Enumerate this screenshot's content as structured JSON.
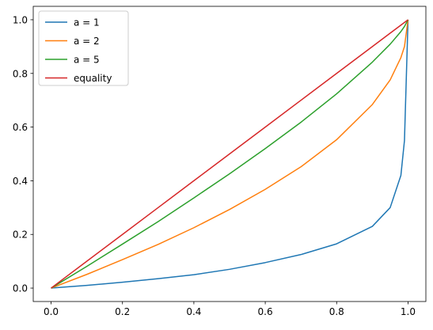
{
  "chart_data": {
    "type": "line",
    "x": [
      0,
      0.1,
      0.2,
      0.3,
      0.4,
      0.5,
      0.6,
      0.7,
      0.8,
      0.9,
      0.95,
      0.98,
      0.99,
      1.0
    ],
    "series": [
      {
        "name": "a = 1",
        "color": "#1f77b4",
        "values": [
          0,
          0.01,
          0.022,
          0.035,
          0.05,
          0.07,
          0.095,
          0.125,
          0.165,
          0.23,
          0.3,
          0.42,
          0.55,
          1.0
        ]
      },
      {
        "name": "a = 2",
        "color": "#ff7f0e",
        "values": [
          0,
          0.051,
          0.106,
          0.163,
          0.225,
          0.293,
          0.368,
          0.452,
          0.553,
          0.684,
          0.776,
          0.859,
          0.9,
          1.0
        ]
      },
      {
        "name": "a = 5",
        "color": "#2ca02c",
        "values": [
          0,
          0.081,
          0.164,
          0.248,
          0.336,
          0.426,
          0.52,
          0.618,
          0.724,
          0.842,
          0.909,
          0.956,
          0.975,
          1.0
        ]
      },
      {
        "name": "equality",
        "color": "#d62728",
        "values": [
          0,
          0.1,
          0.2,
          0.3,
          0.4,
          0.5,
          0.6,
          0.7,
          0.8,
          0.9,
          0.95,
          0.98,
          0.99,
          1.0
        ]
      }
    ],
    "xlim": [
      -0.05,
      1.05
    ],
    "ylim": [
      -0.05,
      1.05
    ],
    "xticks": [
      {
        "value": 0,
        "label": "0.0"
      },
      0.2,
      0.4,
      0.6,
      0.8,
      {
        "value": 1,
        "label": "1.0"
      }
    ],
    "yticks": [
      {
        "value": 0,
        "label": "0.0"
      },
      0.2,
      0.4,
      0.6,
      0.8,
      {
        "value": 1,
        "label": "1.0"
      }
    ],
    "legend": "upper left",
    "grid": false
  }
}
